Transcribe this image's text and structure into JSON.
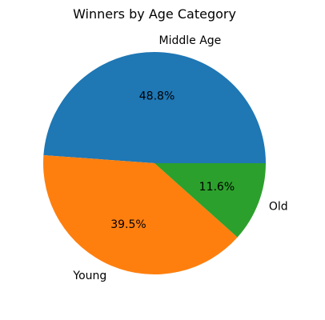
{
  "chart_data": {
    "type": "pie",
    "title": "Winners by Age Category",
    "slices": [
      {
        "label": "Middle Age",
        "value": 48.8,
        "pct_label": "48.8%",
        "color": "#1f77b4"
      },
      {
        "label": "Young",
        "value": 39.5,
        "pct_label": "39.5%",
        "color": "#ff7f0e"
      },
      {
        "label": "Old",
        "value": 11.6,
        "pct_label": "11.6%",
        "color": "#2ca02c"
      }
    ],
    "start_angle_deg": 0,
    "direction": "counterclockwise",
    "legend": "none"
  }
}
